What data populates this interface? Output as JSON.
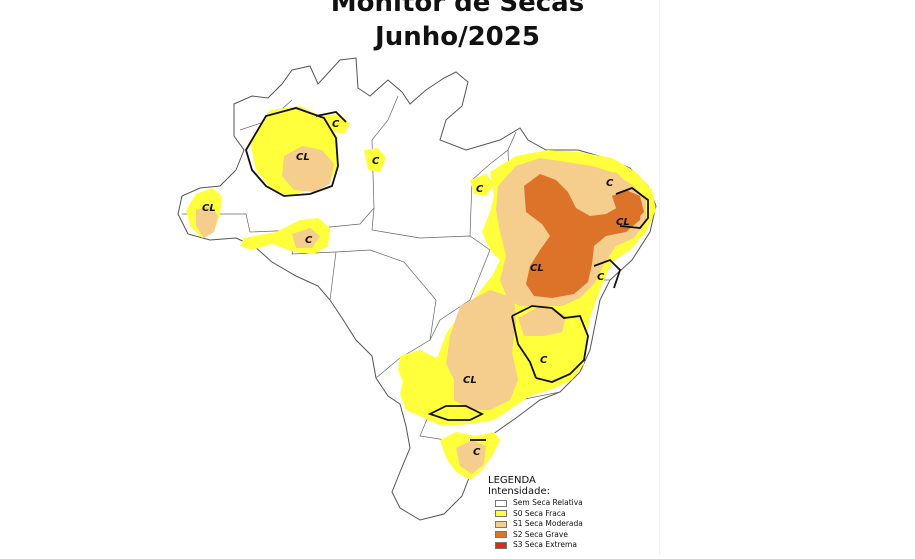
{
  "title": {
    "line1": "Monitor de Secas",
    "line2": "Junho/2025"
  },
  "legend": {
    "heading": "LEGENDA",
    "subheading": "Intensidade:",
    "items": [
      {
        "label": "Sem Seca Relativa",
        "color": "#ffffff"
      },
      {
        "label": "S0 Seca Fraca",
        "color": "#ffff3c"
      },
      {
        "label": "S1 Seca Moderada",
        "color": "#f5cd8c"
      },
      {
        "label": "S2 Seca Grave",
        "color": "#dc7328"
      },
      {
        "label": "S3 Seca Extrema",
        "color": "#dc2a16"
      }
    ]
  },
  "impact_labels": {
    "long_term": "CL",
    "short_term": "C"
  }
}
